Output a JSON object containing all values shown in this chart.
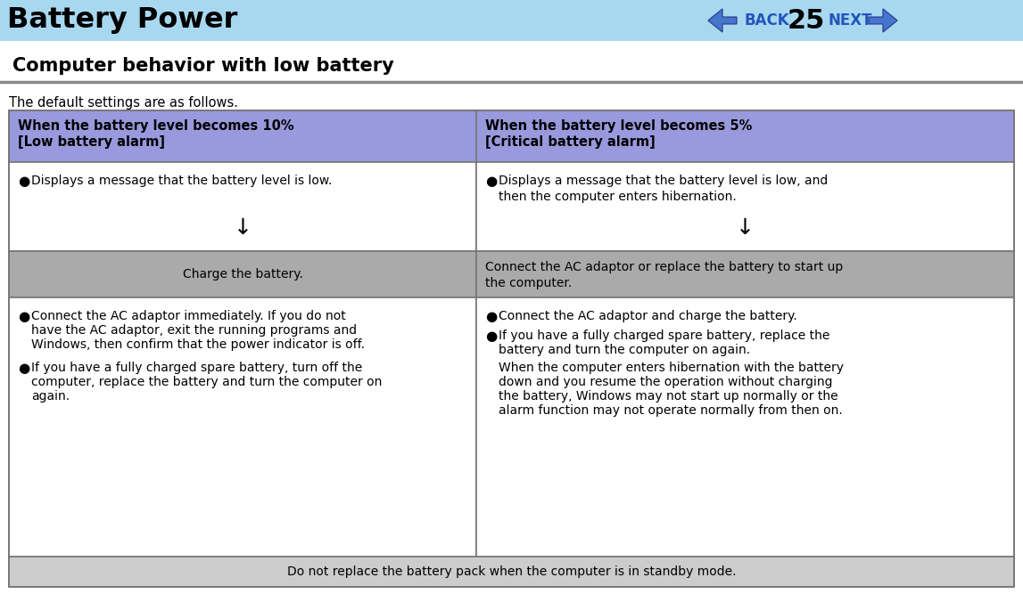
{
  "title": "Battery Power",
  "page_num": "25",
  "header_bg": "#a8d8f0",
  "section_title": "Computer behavior with low battery",
  "intro_text": "The default settings are as follows.",
  "col1_header_line1": "When the battery level becomes 10%",
  "col1_header_line2": "[Low battery alarm]",
  "col2_header_line1": "When the battery level becomes 5%",
  "col2_header_line2": "[Critical battery alarm]",
  "header_row_bg": "#9999dd",
  "col1_row1_bullet": "Displays a message that the battery level is low.",
  "col2_row1_line1": "Displays a message that the battery level is low, and",
  "col2_row1_line2": "then the computer enters hibernation.",
  "gray_row_bg": "#aaaaaa",
  "col1_gray": "Charge the battery.",
  "col2_gray_line1": "Connect the AC adaptor or replace the battery to start up",
  "col2_gray_line2": "the computer.",
  "col1_bullets": [
    [
      "Connect the AC adaptor immediately. If you do not",
      "have the AC adaptor, exit the running programs and",
      "Windows, then confirm that the power indicator is off."
    ],
    [
      "If you have a fully charged spare battery, turn off the",
      "computer, replace the battery and turn the computer on",
      "again."
    ]
  ],
  "col2_bullet1": [
    "Connect the AC adaptor and charge the battery."
  ],
  "col2_bullet2": [
    "If you have a fully charged spare battery, replace the",
    "battery and turn the computer on again."
  ],
  "col2_note": [
    "When the computer enters hibernation with the battery",
    "down and you resume the operation without charging",
    "the battery, Windows may not start up normally or the",
    "alarm function may not operate normally from then on."
  ],
  "footer_text": "Do not replace the battery pack when the computer is in standby mode.",
  "footer_bg": "#cccccc",
  "white_bg": "#ffffff",
  "table_border": "#777777",
  "nav_color": "#2255bb",
  "nav_arrow_fill": "#4477cc",
  "nav_arrow_dark": "#334499"
}
